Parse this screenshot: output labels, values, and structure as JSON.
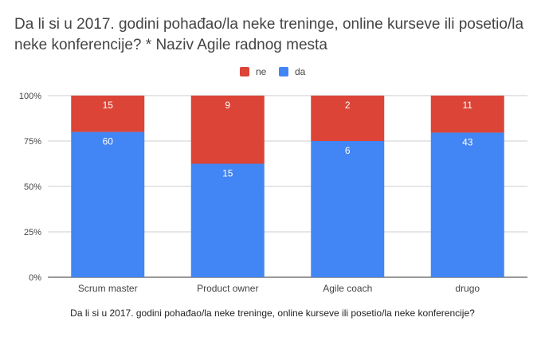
{
  "title": "Da li si u 2017. godini pohađao/la neke treninge, online kurseve ili posetio/la neke konferencije? * Naziv Agile radnog mesta",
  "colors": {
    "ne": "#db4437",
    "da": "#4285f4"
  },
  "chart_data": {
    "type": "bar",
    "stacked": true,
    "normalized": true,
    "title": "Da li si u 2017. godini pohađao/la neke treninge, online kurseve ili posetio/la neke konferencije? * Naziv Agile radnog mesta",
    "xlabel": "Da li si u 2017. godini pohađao/la neke treninge, online kurseve ili posetio/la neke konferencije?",
    "ylabel": "",
    "categories": [
      "Scrum master",
      "Product owner",
      "Agile coach",
      "drugo"
    ],
    "series": [
      {
        "name": "da",
        "values": [
          60,
          15,
          6,
          43
        ]
      },
      {
        "name": "ne",
        "values": [
          15,
          9,
          2,
          11
        ]
      }
    ],
    "yticks": [
      "0%",
      "25%",
      "50%",
      "75%",
      "100%"
    ],
    "ylim": [
      0,
      100
    ],
    "legend": "top",
    "grid": true
  }
}
